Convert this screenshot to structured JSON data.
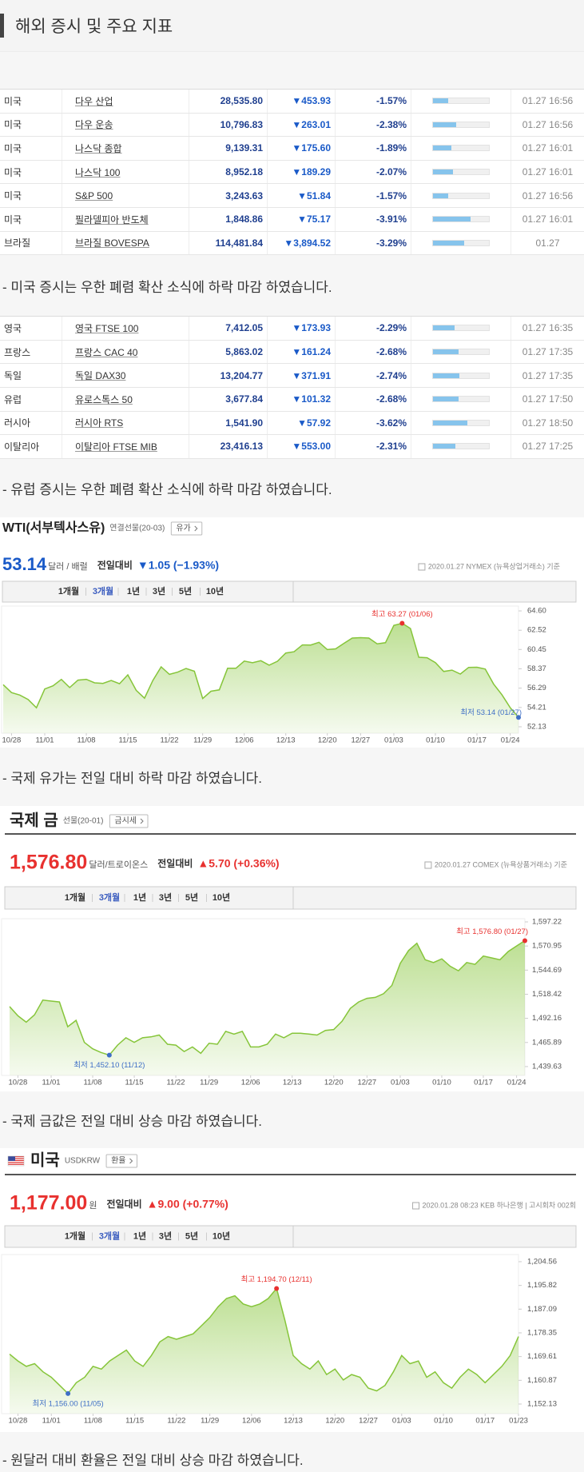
{
  "header": {
    "title": "해외 증시 및 주요 지표"
  },
  "tables": [
    {
      "rows": [
        [
          "미국",
          "다우 산업",
          "28,535.80",
          "▼453.93",
          "-1.57%",
          "01.27 16:56"
        ],
        [
          "미국",
          "다우 운송",
          "10,796.83",
          "▼263.01",
          "-2.38%",
          "01.27 16:56"
        ],
        [
          "미국",
          "나스닥 종합",
          "9,139.31",
          "▼175.60",
          "-1.89%",
          "01.27 16:01"
        ],
        [
          "미국",
          "나스닥 100",
          "8,952.18",
          "▼189.29",
          "-2.07%",
          "01.27 16:01"
        ],
        [
          "미국",
          "S&P 500",
          "3,243.63",
          "▼51.84",
          "-1.57%",
          "01.27 16:56"
        ],
        [
          "미국",
          "필라델피아 반도체",
          "1,848.86",
          "▼75.17",
          "-3.91%",
          "01.27 16:01"
        ],
        [
          "브라질",
          "브라질 BOVESPA",
          "114,481.84",
          "▼3,894.52",
          "-3.29%",
          "01.27"
        ]
      ]
    },
    {
      "rows": [
        [
          "영국",
          "영국 FTSE 100",
          "7,412.05",
          "▼173.93",
          "-2.29%",
          "01.27 16:35"
        ],
        [
          "프랑스",
          "프랑스 CAC 40",
          "5,863.02",
          "▼161.24",
          "-2.68%",
          "01.27 17:35"
        ],
        [
          "독일",
          "독일 DAX30",
          "13,204.77",
          "▼371.91",
          "-2.74%",
          "01.27 17:35"
        ],
        [
          "유럽",
          "유로스톡스 50",
          "3,677.84",
          "▼101.32",
          "-2.68%",
          "01.27 17:50"
        ],
        [
          "러시아",
          "러시아 RTS",
          "1,541.90",
          "▼57.92",
          "-3.62%",
          "01.27 18:50"
        ],
        [
          "이탈리아",
          "이탈리아 FTSE MIB",
          "23,416.13",
          "▼553.00",
          "-2.31%",
          "01.27 17:25"
        ]
      ]
    }
  ],
  "notes": [
    "- 미국 증시는 우한 폐렴 확산 소식에 하락 마감 하였습니다.",
    "- 유럽 증시는 우한 폐렴 확산 소식에 하락 마감 하였습니다.",
    "- 국제 유가는 전일 대비 하락 마감 하였습니다.",
    "- 국제 금값은 전일 대비 상승 마감 하였습니다.",
    "- 원달러 대비 환율은 전일 대비 상승 마감 하였습니다."
  ],
  "chart_data": [
    {
      "type": "area",
      "title": "WTI(서부텍사스유)",
      "subtitle": "연결선물(20-03)",
      "button": "유가",
      "price": "53.14",
      "unit": "달러 / 배럴",
      "change_label": "전일대비",
      "change": "▼1.05 (−1.93%)",
      "change_color": "#1a5ac8",
      "source": "2020.01.27 NYMEX (뉴욕상업거래소) 기준",
      "tabs": [
        "1개월",
        "3개월",
        "1년",
        "3년",
        "5년",
        "10년"
      ],
      "active_tab": 1,
      "color": "#86c53a",
      "values": [
        56.66,
        55.81,
        55.54,
        55.06,
        54.18,
        56.2,
        56.54,
        57.23,
        56.35,
        57.15,
        57.24,
        56.86,
        56.8,
        57.12,
        56.77,
        57.72,
        56.05,
        55.21,
        57.11,
        58.58,
        57.77,
        58.01,
        58.41,
        58.11,
        55.17,
        55.96,
        56.1,
        58.43,
        58.43,
        59.2,
        59.02,
        59.24,
        58.76,
        59.18,
        60.07,
        60.21,
        60.94,
        60.93,
        61.22,
        60.44,
        60.52,
        61.11,
        61.68,
        61.72,
        61.68,
        61.06,
        61.18,
        63.05,
        63.27,
        62.7,
        59.61,
        59.56,
        59.04,
        58.08,
        58.23,
        57.81,
        58.52,
        58.54,
        58.34,
        56.74,
        55.59,
        54.19,
        53.14
      ],
      "xlim": [
        0,
        62
      ],
      "xticks": [
        {
          "value": 1,
          "label": "10/28"
        },
        {
          "value": 5,
          "label": "11/01"
        },
        {
          "value": 10,
          "label": "11/08"
        },
        {
          "value": 15,
          "label": "11/15"
        },
        {
          "value": 20,
          "label": "11/22"
        },
        {
          "value": 24,
          "label": "11/29"
        },
        {
          "value": 29,
          "label": "12/06"
        },
        {
          "value": 34,
          "label": "12/13"
        },
        {
          "value": 39,
          "label": "12/20"
        },
        {
          "value": 43,
          "label": "12/27"
        },
        {
          "value": 47,
          "label": "01/03"
        },
        {
          "value": 52,
          "label": "01/10"
        },
        {
          "value": 57,
          "label": "01/17"
        },
        {
          "value": 61,
          "label": "01/24"
        }
      ],
      "ylim": [
        51.44,
        65.12
      ],
      "yticks": [
        {
          "value": 64.6,
          "label": "64.60"
        },
        {
          "value": 62.52,
          "label": "62.52"
        },
        {
          "value": 60.45,
          "label": "60.45"
        },
        {
          "value": 58.37,
          "label": "58.37"
        },
        {
          "value": 56.29,
          "label": "56.29"
        },
        {
          "value": 54.21,
          "label": "54.21"
        },
        {
          "value": 52.13,
          "label": "52.13"
        }
      ],
      "annotations": [
        {
          "text": "최고 63.27 (01/06)",
          "x": 48,
          "y": 63.27,
          "color": "#e8312f"
        },
        {
          "text": "최저 53.14 (01/27)",
          "x": 62,
          "y": 53.14,
          "color": "#3f6fc6"
        }
      ]
    },
    {
      "type": "area",
      "title": "국제 금",
      "subtitle": "선물(20-01)",
      "button": "금시세",
      "price": "1,576.80",
      "unit": "달러/트로이온스",
      "change_label": "전일대비",
      "change": "▲5.70 (+0.36%)",
      "change_color": "#e8312f",
      "source": "2020.01.27 COMEX (뉴욕상품거래소) 기준",
      "tabs": [
        "1개월",
        "3개월",
        "1년",
        "3년",
        "5년",
        "10년"
      ],
      "active_tab": 1,
      "color": "#86c53a",
      "values": [
        1505,
        1495,
        1488,
        1496,
        1512,
        1511,
        1510,
        1483,
        1490,
        1466,
        1459,
        1455,
        1452.1,
        1463,
        1471,
        1466,
        1471,
        1472,
        1474,
        1464,
        1463,
        1456,
        1461,
        1454,
        1465,
        1464,
        1478,
        1475,
        1478,
        1461,
        1461,
        1464,
        1475,
        1471,
        1476,
        1476,
        1475,
        1474,
        1479,
        1480,
        1489,
        1503,
        1510,
        1514,
        1515,
        1519,
        1528,
        1552,
        1566,
        1574,
        1556,
        1553,
        1557,
        1549,
        1544,
        1553,
        1551,
        1560,
        1558,
        1556,
        1565,
        1571,
        1576.8
      ],
      "xlim": [
        0,
        62
      ],
      "xticks": [
        {
          "value": 1,
          "label": "10/28"
        },
        {
          "value": 5,
          "label": "11/01"
        },
        {
          "value": 10,
          "label": "11/08"
        },
        {
          "value": 15,
          "label": "11/15"
        },
        {
          "value": 20,
          "label": "11/22"
        },
        {
          "value": 24,
          "label": "11/29"
        },
        {
          "value": 29,
          "label": "12/06"
        },
        {
          "value": 34,
          "label": "12/13"
        },
        {
          "value": 39,
          "label": "12/20"
        },
        {
          "value": 43,
          "label": "12/27"
        },
        {
          "value": 47,
          "label": "01/03"
        },
        {
          "value": 52,
          "label": "01/10"
        },
        {
          "value": 57,
          "label": "01/17"
        },
        {
          "value": 61,
          "label": "01/24"
        }
      ],
      "ylim": [
        1430.0,
        1600.7
      ],
      "yticks": [
        {
          "value": 1597.22,
          "label": "1,597.22"
        },
        {
          "value": 1570.95,
          "label": "1,570.95"
        },
        {
          "value": 1544.69,
          "label": "1,544.69"
        },
        {
          "value": 1518.42,
          "label": "1,518.42"
        },
        {
          "value": 1492.16,
          "label": "1,492.16"
        },
        {
          "value": 1465.89,
          "label": "1,465.89"
        },
        {
          "value": 1439.63,
          "label": "1,439.63"
        }
      ],
      "annotations": [
        {
          "text": "최고 1,576.80 (01/27)",
          "x": 62,
          "y": 1576.8,
          "color": "#e8312f"
        },
        {
          "text": "최저 1,452.10 (11/12)",
          "x": 12,
          "y": 1452.1,
          "color": "#3f6fc6"
        }
      ]
    },
    {
      "type": "area",
      "title": "미국",
      "subtitle": "USDKRW",
      "button": "환율",
      "price": "1,177.00",
      "unit": "원",
      "change_label": "전일대비",
      "change": "▲9.00 (+0.77%)",
      "change_color": "#e8312f",
      "source": "2020.01.28 08:23 KEB 하나은행 | 고시회차 002회",
      "tabs": [
        "1개월",
        "3개월",
        "1년",
        "3년",
        "5년",
        "10년"
      ],
      "active_tab": 1,
      "color": "#86c53a",
      "values": [
        1170.5,
        1168,
        1166,
        1167,
        1164,
        1162,
        1159,
        1156,
        1160,
        1162,
        1166,
        1165,
        1168,
        1170,
        1172,
        1168,
        1166,
        1170,
        1175,
        1177,
        1176,
        1177,
        1178,
        1181,
        1184,
        1188,
        1191,
        1192,
        1189,
        1188,
        1189,
        1191,
        1194.7,
        1183,
        1170,
        1167,
        1165,
        1168,
        1163,
        1165,
        1161,
        1163,
        1162,
        1158,
        1157,
        1159,
        1164,
        1170,
        1167,
        1168,
        1162,
        1164,
        1160,
        1158,
        1162,
        1165,
        1163,
        1160,
        1163,
        1166,
        1170,
        1177
      ],
      "xlim": [
        0,
        61
      ],
      "xticks": [
        {
          "value": 1,
          "label": "10/28"
        },
        {
          "value": 5,
          "label": "11/01"
        },
        {
          "value": 10,
          "label": "11/08"
        },
        {
          "value": 15,
          "label": "11/15"
        },
        {
          "value": 20,
          "label": "11/22"
        },
        {
          "value": 24,
          "label": "11/29"
        },
        {
          "value": 29,
          "label": "12/06"
        },
        {
          "value": 34,
          "label": "12/13"
        },
        {
          "value": 39,
          "label": "12/20"
        },
        {
          "value": 43,
          "label": "12/27"
        },
        {
          "value": 47,
          "label": "01/03"
        },
        {
          "value": 52,
          "label": "01/10"
        },
        {
          "value": 57,
          "label": "01/17"
        },
        {
          "value": 61,
          "label": "01/23"
        }
      ],
      "ylim": [
        1148.6,
        1207.2
      ],
      "yticks": [
        {
          "value": 1204.56,
          "label": "1,204.56"
        },
        {
          "value": 1195.82,
          "label": "1,195.82"
        },
        {
          "value": 1187.09,
          "label": "1,187.09"
        },
        {
          "value": 1178.35,
          "label": "1,178.35"
        },
        {
          "value": 1169.61,
          "label": "1,169.61"
        },
        {
          "value": 1160.87,
          "label": "1,160.87"
        },
        {
          "value": 1152.13,
          "label": "1,152.13"
        }
      ],
      "annotations": [
        {
          "text": "최고 1,194.70 (12/11)",
          "x": 32,
          "y": 1194.7,
          "color": "#e8312f"
        },
        {
          "text": "최저 1,156.00 (11/05)",
          "x": 7,
          "y": 1156,
          "color": "#3f6fc6"
        }
      ]
    }
  ]
}
